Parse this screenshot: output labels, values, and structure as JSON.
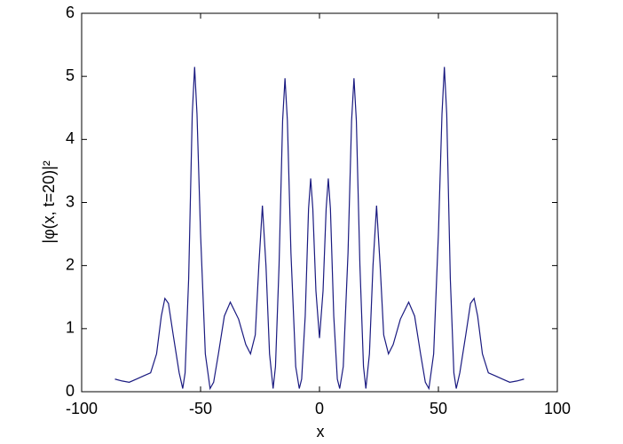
{
  "chart_data": {
    "type": "line",
    "xlabel": "x",
    "ylabel": "|φ(x, t=20)|²",
    "color": "#1a1a80",
    "x": [
      -86,
      -83,
      -80,
      -77,
      -74,
      -71,
      -68.5,
      -66.5,
      -65,
      -63.5,
      -61.5,
      -59,
      -57.5,
      -56.5,
      -55,
      -53.5,
      -52.5,
      -51.5,
      -50,
      -48,
      -46,
      -44.5,
      -42.5,
      -40,
      -37.5,
      -34,
      -31,
      -29,
      -27,
      -25.5,
      -24,
      -22.5,
      -21,
      -19.5,
      -18.5,
      -17,
      -15.5,
      -14.5,
      -13.5,
      -12,
      -10,
      -8.5,
      -7.5,
      -6,
      -4.6,
      -3.7,
      -2.8,
      -1.5,
      0,
      1.5,
      2.8,
      3.7,
      4.6,
      6,
      7.5,
      8.5,
      10,
      12,
      13.5,
      14.5,
      15.5,
      17,
      18.5,
      19.5,
      21,
      22.5,
      24,
      25.5,
      27,
      29,
      31,
      34,
      37.5,
      40,
      42.5,
      44.5,
      46,
      48,
      50,
      51.5,
      52.5,
      53.5,
      55,
      56.5,
      57.5,
      59,
      61.5,
      63.5,
      65,
      66.5,
      68.5,
      71,
      74,
      77,
      80,
      83,
      86
    ],
    "values": [
      0.2,
      0.17,
      0.15,
      0.2,
      0.25,
      0.3,
      0.6,
      1.2,
      1.48,
      1.4,
      0.9,
      0.3,
      0.05,
      0.3,
      1.8,
      4.4,
      5.15,
      4.4,
      2.5,
      0.6,
      0.05,
      0.15,
      0.6,
      1.2,
      1.42,
      1.15,
      0.75,
      0.6,
      0.9,
      2.0,
      2.95,
      2.0,
      0.6,
      0.05,
      0.4,
      2.0,
      4.3,
      4.97,
      4.3,
      2.2,
      0.4,
      0.05,
      0.2,
      1.2,
      2.9,
      3.38,
      2.9,
      1.6,
      0.85,
      1.6,
      2.9,
      3.38,
      2.9,
      1.2,
      0.2,
      0.05,
      0.4,
      2.2,
      4.3,
      4.97,
      4.3,
      2.0,
      0.4,
      0.05,
      0.6,
      2.0,
      2.95,
      2.0,
      0.9,
      0.6,
      0.75,
      1.15,
      1.42,
      1.2,
      0.6,
      0.15,
      0.05,
      0.6,
      2.5,
      4.4,
      5.15,
      4.4,
      1.8,
      0.3,
      0.05,
      0.3,
      0.9,
      1.4,
      1.48,
      1.2,
      0.6,
      0.3,
      0.25,
      0.2,
      0.15,
      0.17,
      0.2
    ],
    "xlim": [
      -100,
      100
    ],
    "xticks": [
      -100,
      -50,
      0,
      50,
      100
    ],
    "ylim": [
      0,
      6
    ],
    "yticks": [
      0,
      1,
      2,
      3,
      4,
      5,
      6
    ],
    "grid": false
  }
}
